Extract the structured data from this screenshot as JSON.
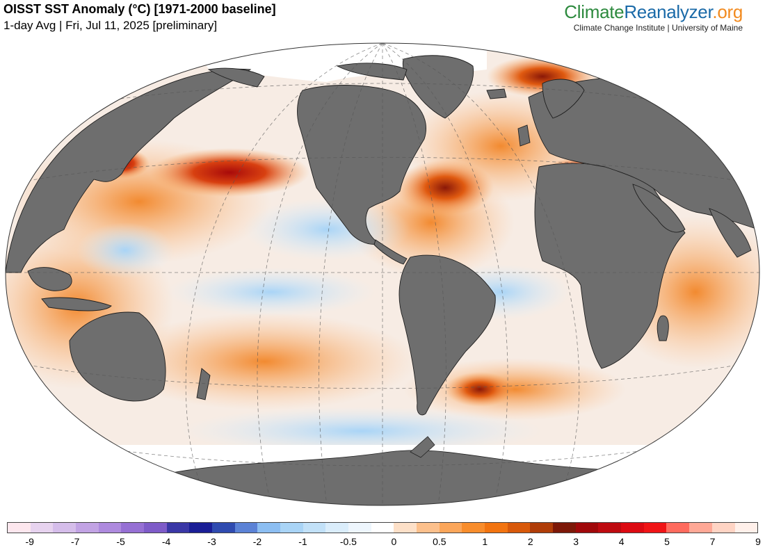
{
  "header": {
    "title": "OISST SST Anomaly (°C) [1971-2000 baseline]",
    "subtitle": "1-day Avg | Fri, Jul 11, 2025 [preliminary]"
  },
  "brand": {
    "part1": "Climate",
    "part2": "Reanalyzer",
    "part3": ".org",
    "subtitle": "Climate Change Institute | University of Maine"
  },
  "map": {
    "projection": "Winkel tripel (world)",
    "land_color": "#6e6e6e",
    "sea_ice_color": "#ffffff"
  },
  "colorbar": {
    "colors": [
      "#fde7ee",
      "#e7d3ef",
      "#d5bdea",
      "#c2a3e4",
      "#ae8ade",
      "#9670d4",
      "#7e5bc8",
      "#3a37a6",
      "#1a1e96",
      "#2f4bb0",
      "#5b82d6",
      "#8cbef2",
      "#a9d4f6",
      "#c2e1f8",
      "#daedfb",
      "#eef6fd",
      "#ffffff",
      "#fde0c8",
      "#fcc08c",
      "#fba65a",
      "#f88d2c",
      "#f27410",
      "#d8590a",
      "#b03d08",
      "#7d1808",
      "#a0080a",
      "#be0a10",
      "#dc0a12",
      "#f01416",
      "#ff6b5e",
      "#ffa896",
      "#ffd4c4",
      "#fff0ea"
    ],
    "tick_labels": [
      "-9",
      "-7",
      "-5",
      "-4",
      "-3",
      "-2",
      "-1",
      "-0.5",
      "0",
      "0.5",
      "1",
      "2",
      "3",
      "4",
      "5",
      "7",
      "9"
    ]
  }
}
